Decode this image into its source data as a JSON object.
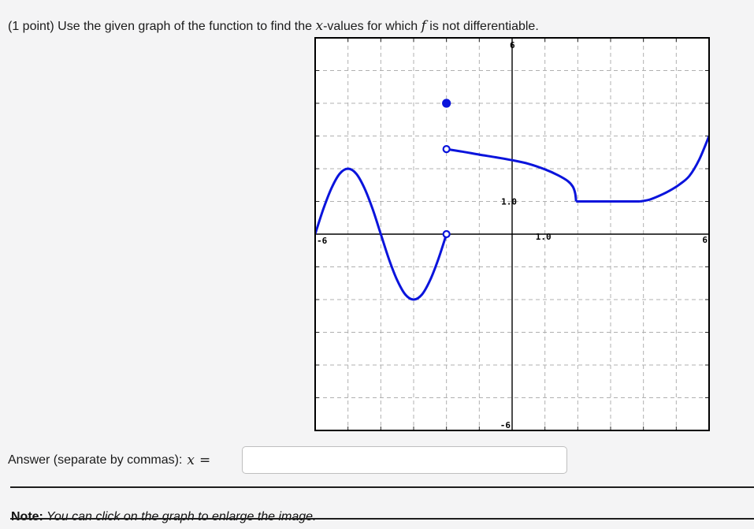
{
  "page": {
    "background": "#f4f4f5"
  },
  "header": {
    "part1": "(1 point) Use the given graph of the function to find the ",
    "x_var": "x",
    "part2": "-values for which ",
    "f_var": "f",
    "part3": " is not differentiable."
  },
  "answer": {
    "label": "Answer (separate by commas):",
    "var": "x",
    "eq": "=",
    "value": ""
  },
  "note": {
    "bold": "Note:",
    "text": " You can click on the graph to enlarge the image."
  },
  "graph": {
    "colors": {
      "curve": "#0a14dc",
      "grid": "#b0b0b0",
      "axis": "#000000",
      "frame": "#000000",
      "background": "#ffffff",
      "tick": "#222222"
    },
    "axis_labels": {
      "y_top": "6",
      "y_bottom": "-6",
      "x_left": "-6",
      "x_right": "6",
      "y_one": "1.0",
      "x_one": "1.0"
    }
  },
  "chart_data": {
    "type": "line",
    "title": "",
    "xlabel": "",
    "ylabel": "",
    "xlim": [
      -6,
      6
    ],
    "ylim": [
      -6,
      6
    ],
    "grid": true,
    "grid_step": 1,
    "legend": false,
    "series": [
      {
        "name": "sine-branch",
        "smooth": true,
        "points": [
          [
            -6,
            0
          ],
          [
            -5.75,
            0.77
          ],
          [
            -5.5,
            1.41
          ],
          [
            -5.25,
            1.85
          ],
          [
            -5,
            2
          ],
          [
            -4.75,
            1.85
          ],
          [
            -4.5,
            1.41
          ],
          [
            -4.25,
            0.77
          ],
          [
            -4,
            0
          ],
          [
            -3.75,
            -0.77
          ],
          [
            -3.5,
            -1.41
          ],
          [
            -3.25,
            -1.85
          ],
          [
            -3,
            -2
          ],
          [
            -2.75,
            -1.85
          ],
          [
            -2.5,
            -1.41
          ],
          [
            -2.25,
            -0.77
          ],
          [
            -2,
            0
          ]
        ]
      },
      {
        "name": "middle-branch",
        "smooth": true,
        "points": [
          [
            -2,
            2.6
          ],
          [
            -1.5,
            2.52
          ],
          [
            -1,
            2.43
          ],
          [
            -0.5,
            2.35
          ],
          [
            0,
            2.26
          ],
          [
            0.5,
            2.15
          ],
          [
            1,
            1.98
          ],
          [
            1.4,
            1.8
          ],
          [
            1.7,
            1.62
          ],
          [
            1.85,
            1.45
          ],
          [
            1.92,
            1.25
          ],
          [
            1.95,
            1
          ]
        ]
      },
      {
        "name": "flat-segment",
        "smooth": false,
        "points": [
          [
            1.95,
            1
          ],
          [
            3.9,
            1
          ]
        ]
      },
      {
        "name": "rising-branch",
        "smooth": true,
        "points": [
          [
            3.9,
            1
          ],
          [
            4.2,
            1.06
          ],
          [
            4.5,
            1.18
          ],
          [
            4.8,
            1.33
          ],
          [
            5.1,
            1.52
          ],
          [
            5.4,
            1.78
          ],
          [
            5.7,
            2.28
          ],
          [
            6,
            3
          ]
        ]
      }
    ],
    "special_points": [
      {
        "type": "open",
        "x": -2,
        "y": 0
      },
      {
        "type": "open",
        "x": -2,
        "y": 2.6
      },
      {
        "type": "closed",
        "x": -2,
        "y": 4
      }
    ]
  }
}
